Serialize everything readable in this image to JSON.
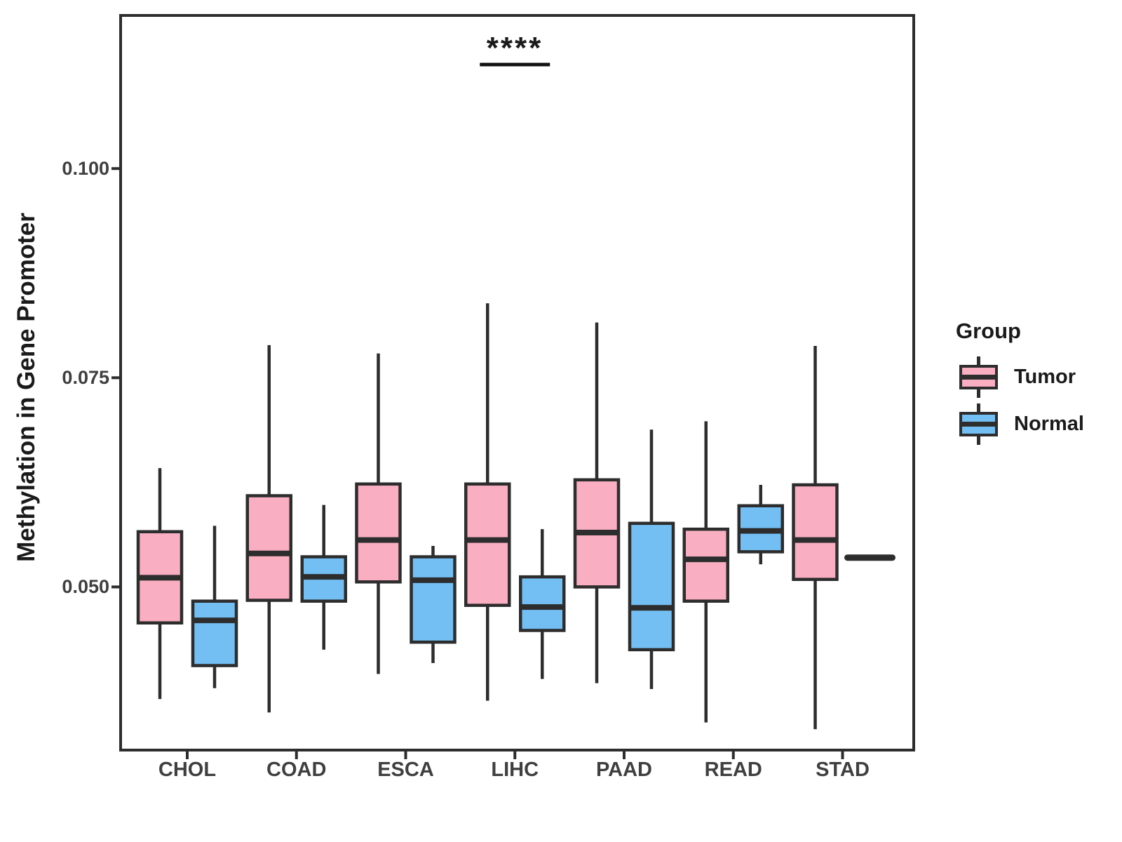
{
  "figure": {
    "y_axis_title": "Methylation in Gene Promoter",
    "y_tick_labels": [
      "0.100",
      "0.075",
      "0.050"
    ],
    "annotation": {
      "text": "****",
      "category": "LIHC"
    },
    "legend": {
      "title": "Group",
      "entries": [
        {
          "label": "Tumor",
          "color": "#F9AEC1"
        },
        {
          "label": "Normal",
          "color": "#73BFF4"
        }
      ]
    }
  },
  "chart_data": {
    "type": "box",
    "title": "",
    "xlabel": "",
    "ylabel": "Methylation in Gene Promoter",
    "ylim": [
      0.0305,
      0.1183
    ],
    "y_ticks": [
      0.1,
      0.075,
      0.05
    ],
    "grid": false,
    "legend_position": "right",
    "categories": [
      "CHOL",
      "COAD",
      "ESCA",
      "LIHC",
      "PAAD",
      "READ",
      "STAD"
    ],
    "series": [
      {
        "name": "Tumor",
        "color": "#F9AEC1",
        "boxes": [
          {
            "min": 0.0366,
            "q1": 0.0457,
            "median": 0.0511,
            "q3": 0.0566,
            "max": 0.0642
          },
          {
            "min": 0.035,
            "q1": 0.0484,
            "median": 0.054,
            "q3": 0.0609,
            "max": 0.0789
          },
          {
            "min": 0.0396,
            "q1": 0.0506,
            "median": 0.0556,
            "q3": 0.0623,
            "max": 0.0779
          },
          {
            "min": 0.0364,
            "q1": 0.0478,
            "median": 0.0556,
            "q3": 0.0623,
            "max": 0.0839
          },
          {
            "min": 0.0385,
            "q1": 0.05,
            "median": 0.0565,
            "q3": 0.0628,
            "max": 0.0816
          },
          {
            "min": 0.0338,
            "q1": 0.0483,
            "median": 0.0533,
            "q3": 0.0569,
            "max": 0.0698
          },
          {
            "min": 0.033,
            "q1": 0.0509,
            "median": 0.0556,
            "q3": 0.0622,
            "max": 0.0788
          }
        ]
      },
      {
        "name": "Normal",
        "color": "#73BFF4",
        "boxes": [
          {
            "min": 0.0379,
            "q1": 0.0406,
            "median": 0.046,
            "q3": 0.0483,
            "max": 0.0573
          },
          {
            "min": 0.0425,
            "q1": 0.0483,
            "median": 0.0512,
            "q3": 0.0536,
            "max": 0.0598
          },
          {
            "min": 0.0409,
            "q1": 0.0434,
            "median": 0.0508,
            "q3": 0.0536,
            "max": 0.0549
          },
          {
            "min": 0.039,
            "q1": 0.0448,
            "median": 0.0476,
            "q3": 0.0512,
            "max": 0.0569
          },
          {
            "min": 0.0378,
            "q1": 0.0425,
            "median": 0.0475,
            "q3": 0.0576,
            "max": 0.0688
          },
          {
            "min": 0.0527,
            "q1": 0.0542,
            "median": 0.0567,
            "q3": 0.0597,
            "max": 0.0622
          },
          {
            "min": 0.0535,
            "q1": 0.0535,
            "median": 0.0535,
            "q3": 0.0535,
            "max": 0.0535
          }
        ]
      }
    ],
    "significance": {
      "label": "****",
      "category": "LIHC",
      "between": [
        "Tumor",
        "Normal"
      ]
    }
  },
  "style": {
    "line_color": "#2d2d2d",
    "axis_text_color": "#3f3f3f",
    "title_color": "#1a1a1a",
    "background": "#ffffff"
  }
}
